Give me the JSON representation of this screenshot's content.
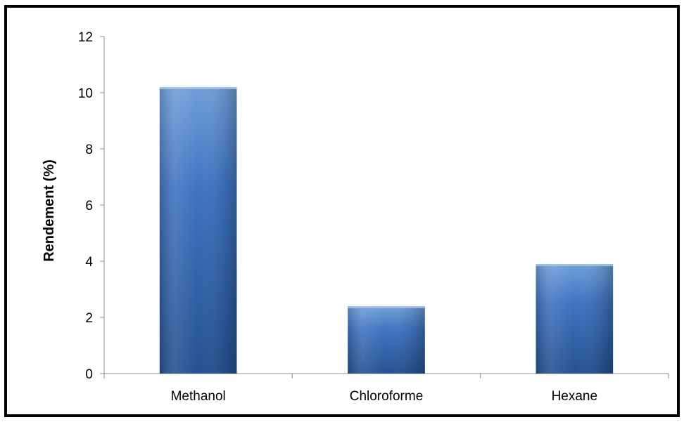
{
  "colors": {
    "bar_top": "#6f9fd8",
    "bar_mid": "#3f74c0",
    "bar_bottom": "#24528f",
    "axis": "#8c8c8c"
  },
  "chart_data": {
    "type": "bar",
    "title": "",
    "xlabel": "",
    "ylabel": "Rendement (%)",
    "categories": [
      "Methanol",
      "Chloroforme",
      "Hexane"
    ],
    "values": [
      10.2,
      2.4,
      3.9
    ],
    "ylim": [
      0,
      12
    ],
    "yticks": [
      0,
      2,
      4,
      6,
      8,
      10,
      12
    ],
    "grid": false,
    "legend": "none"
  }
}
